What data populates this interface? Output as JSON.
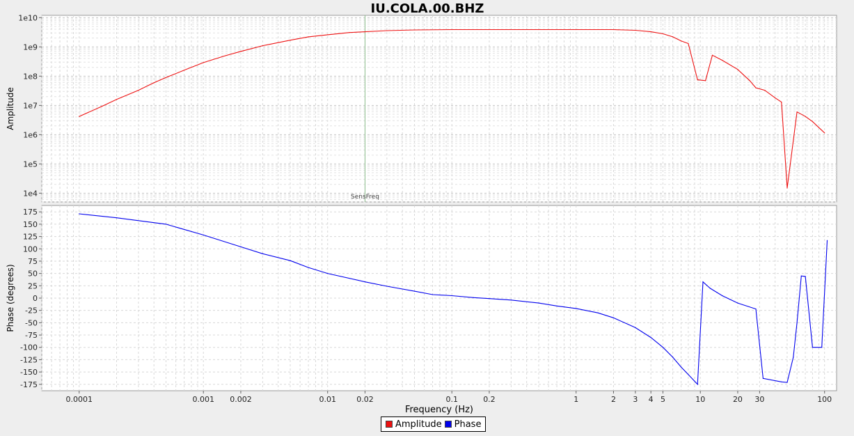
{
  "chart_data": {
    "title": "IU.COLA.00.BHZ",
    "xlabel": "Frequency (Hz)",
    "x_scale": "log",
    "xlim": [
      5e-05,
      125
    ],
    "x_ticks": [
      {
        "v": 0.0001,
        "label": "0.0001"
      },
      {
        "v": 0.001,
        "label": "0.001"
      },
      {
        "v": 0.002,
        "label": "0.002"
      },
      {
        "v": 0.01,
        "label": "0.01"
      },
      {
        "v": 0.02,
        "label": "0.02"
      },
      {
        "v": 0.1,
        "label": "0.1"
      },
      {
        "v": 0.2,
        "label": "0.2"
      },
      {
        "v": 1,
        "label": "1"
      },
      {
        "v": 2,
        "label": "2"
      },
      {
        "v": 3,
        "label": "3"
      },
      {
        "v": 4,
        "label": "4"
      },
      {
        "v": 5,
        "label": "5"
      },
      {
        "v": 10,
        "label": "10"
      },
      {
        "v": 20,
        "label": "20"
      },
      {
        "v": 30,
        "label": "30"
      },
      {
        "v": 100,
        "label": "100"
      }
    ],
    "grid": true,
    "legend": {
      "position": "bottom-center",
      "entries": [
        "Amplitude",
        "Phase"
      ]
    },
    "panels": [
      {
        "type": "line",
        "ylabel": "Amplitude",
        "y_scale": "log",
        "ylim": [
          5000,
          12000000000
        ],
        "y_ticks": [
          {
            "v": 10000,
            "label": "1e4"
          },
          {
            "v": 100000,
            "label": "1e5"
          },
          {
            "v": 1000000,
            "label": "1e6"
          },
          {
            "v": 10000000,
            "label": "1e7"
          },
          {
            "v": 100000000,
            "label": "1e8"
          },
          {
            "v": 1000000000,
            "label": "1e9"
          },
          {
            "v": 10000000000,
            "label": "1e10"
          }
        ],
        "marker": {
          "x": 0.02,
          "label": "SensFreq",
          "color": "#88bb88"
        },
        "series": [
          {
            "name": "Amplitude",
            "color": "#ee1111",
            "x": [
              0.0001,
              0.00015,
              0.0002,
              0.0003,
              0.0004,
              0.0005,
              0.0007,
              0.001,
              0.0015,
              0.002,
              0.003,
              0.005,
              0.007,
              0.01,
              0.015,
              0.02,
              0.03,
              0.05,
              0.1,
              0.2,
              0.5,
              1,
              2,
              3,
              4,
              5,
              6,
              7,
              8,
              9.5,
              11,
              12.5,
              15,
              20,
              25,
              28,
              33,
              40,
              45,
              50,
              60,
              70,
              80,
              100
            ],
            "y": [
              4200000,
              9000000,
              16000000,
              33000000,
              60000000,
              90000000,
              160000000,
              290000000,
              500000000,
              700000000,
              1100000000,
              1700000000,
              2200000000,
              2600000000,
              3100000000,
              3300000000,
              3600000000,
              3800000000,
              3900000000,
              3900000000,
              3900000000,
              3900000000,
              3900000000,
              3700000000,
              3300000000,
              2800000000,
              2200000000,
              1600000000,
              1300000000,
              75000000,
              70000000,
              520000000,
              350000000,
              170000000,
              70000000,
              40000000,
              33000000,
              18000000,
              13000000,
              15000,
              6000000,
              4200000,
              2800000,
              1150000
            ]
          }
        ]
      },
      {
        "type": "line",
        "ylabel": "Phase (degrees)",
        "y_scale": "linear",
        "ylim": [
          -188,
          188
        ],
        "y_ticks": [
          {
            "v": 175,
            "label": "175"
          },
          {
            "v": 150,
            "label": "150"
          },
          {
            "v": 125,
            "label": "125"
          },
          {
            "v": 100,
            "label": "100"
          },
          {
            "v": 75,
            "label": "75"
          },
          {
            "v": 50,
            "label": "50"
          },
          {
            "v": 25,
            "label": "25"
          },
          {
            "v": 0,
            "label": "0"
          },
          {
            "v": -25,
            "label": "-25"
          },
          {
            "v": -50,
            "label": "-50"
          },
          {
            "v": -75,
            "label": "-75"
          },
          {
            "v": -100,
            "label": "-100"
          },
          {
            "v": -125,
            "label": "-125"
          },
          {
            "v": -150,
            "label": "-150"
          },
          {
            "v": -175,
            "label": "-175"
          }
        ],
        "series": [
          {
            "name": "Phase",
            "color": "#0000ee",
            "x": [
              0.0001,
              0.0002,
              0.0005,
              0.001,
              0.002,
              0.003,
              0.005,
              0.007,
              0.01,
              0.02,
              0.03,
              0.05,
              0.07,
              0.1,
              0.15,
              0.2,
              0.3,
              0.5,
              0.7,
              1,
              1.5,
              2,
              3,
              4,
              5,
              6,
              7,
              8,
              9.5,
              10.5,
              12,
              15,
              20,
              28,
              32,
              45,
              50,
              56,
              60,
              65,
              70,
              80,
              95,
              105
            ],
            "y": [
              171,
              163,
              150,
              128,
              104,
              90,
              76,
              62,
              50,
              33,
              24,
              14,
              7,
              5,
              1,
              -1,
              -4,
              -10,
              -16,
              -21,
              -30,
              -40,
              -60,
              -80,
              -100,
              -120,
              -140,
              -155,
              -175,
              33,
              20,
              5,
              -10,
              -22,
              -163,
              -170,
              -171,
              -120,
              -50,
              45,
              44,
              -100,
              -100,
              117
            ]
          }
        ]
      }
    ]
  }
}
